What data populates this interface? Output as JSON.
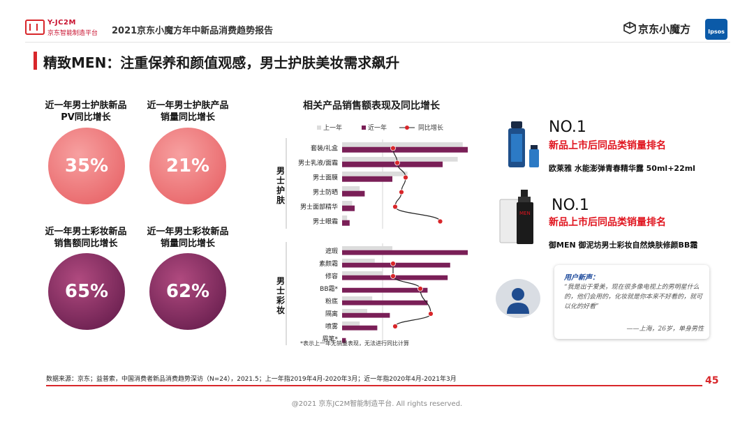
{
  "header": {
    "brand_line1": "Y-JC2M",
    "brand_line2": "京东智能制造平台",
    "report_title": "2021京东小魔方年中新品消费趋势报告",
    "jd_brand": "京东小魔方",
    "partner_logo": "Ipsos"
  },
  "main_title": "精致MEN：注重保养和颜值观感，男士护肤美妆需求飙升",
  "stats": [
    {
      "label": "近一年男士护肤新品\nPV同比增长",
      "value": "35%",
      "color": "#e8676b"
    },
    {
      "label": "近一年男士护肤产品\n销量同比增长",
      "value": "21%",
      "color": "#e8676b"
    },
    {
      "label": "近一年男士彩妆新品\n销售额同比增长",
      "value": "65%",
      "color": "#7a1f57"
    },
    {
      "label": "近一年男士彩妆新品\n销量同比增长",
      "value": "62%",
      "color": "#7a1f57"
    }
  ],
  "chart_data": {
    "type": "bar",
    "title": "相关产品销售额表现及同比增长",
    "legend": [
      "上一年",
      "近一年",
      "同比增长"
    ],
    "colors": {
      "prev": "#dcdcdc",
      "curr": "#7a1f57",
      "growth_line": "#222222",
      "growth_dot": "#d8262a"
    },
    "groups": [
      {
        "name": "男士护肤",
        "categories": [
          "套装/礼盒",
          "男士乳液/面霜",
          "男士面膜",
          "男士防晒",
          "男士面部精华",
          "男士眼霜"
        ],
        "prev": [
          96,
          92,
          52,
          14,
          8,
          4
        ],
        "curr": [
          100,
          80,
          40,
          18,
          10,
          6
        ],
        "growth": [
          10,
          14,
          22,
          18,
          12,
          55
        ]
      },
      {
        "name": "男士彩妆",
        "categories": [
          "遮瑕",
          "素颜霜",
          "修容",
          "BB霜*",
          "粉底",
          "隔离",
          "喷雾",
          "眉笔*"
        ],
        "prev": [
          40,
          26,
          32,
          0,
          24,
          20,
          14,
          0
        ],
        "curr": [
          100,
          86,
          84,
          68,
          68,
          38,
          28,
          3
        ],
        "growth": [
          null,
          10,
          10,
          36,
          null,
          46,
          12,
          null
        ]
      }
    ],
    "note": "*表示上一年无销量表现，无法进行同比计算"
  },
  "products": [
    {
      "rank": "NO.1",
      "rank_label": "新品上市后同品类销量排名",
      "name": "欧莱雅 水能澎弹青春精华露 50ml+22ml"
    },
    {
      "rank": "NO.1",
      "rank_label": "新品上市后同品类销量排名",
      "name": "御MEN 御泥坊男士彩妆自然焕肤修颜BB霜"
    }
  ],
  "quote": {
    "heading": "用户新声：",
    "text": "“我是出于爱美，现在很多像电视上的男明星什么的，他们会用的，化妆就是你本来不好看的，就可以化的好看”",
    "source": "——上海，26岁，单身男性"
  },
  "footer": {
    "source_text": "数据来源：京东；益普索，中国消费者新品消费趋势深访（N=24），2021.5；上一年指2019年4月-2020年3月；近一年指2020年4月-2021年3月",
    "page_number": "45",
    "copyright": "@2021 京东JC2M智能制造平台. All rights reserved."
  }
}
